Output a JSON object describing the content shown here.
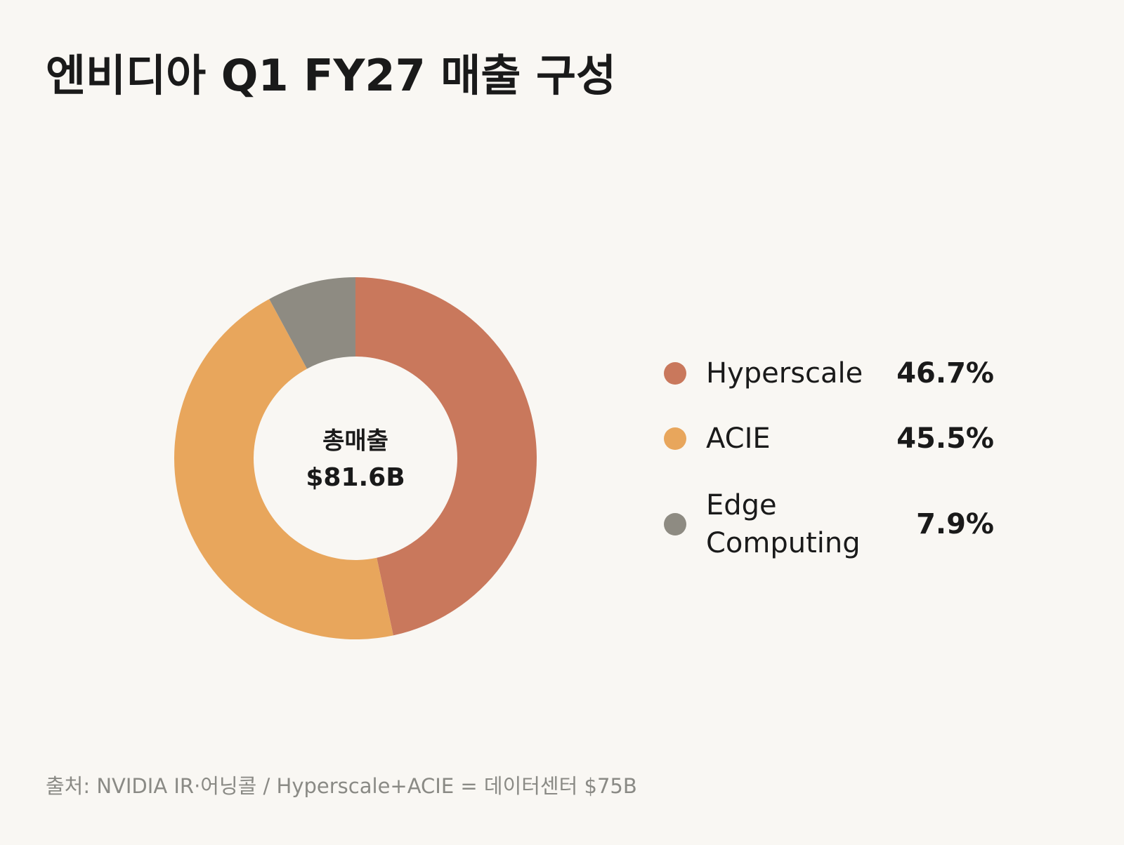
{
  "chart_data": {
    "type": "donut",
    "title": "엔비디아 Q1 FY27 매출 구성",
    "categories": [
      "Hyperscale",
      "ACIE",
      "Edge Computing"
    ],
    "values": [
      46.7,
      45.5,
      7.9
    ],
    "value_labels": [
      "46.7%",
      "45.5%",
      "7.9%"
    ],
    "colors": [
      "#c9785c",
      "#e8a65c",
      "#8e8b82"
    ],
    "center_label": "총매출",
    "center_value": "$81.6B",
    "source": "출처: NVIDIA IR·어닝콜 / Hyperscale+ACIE = 데이터센터 $75B"
  }
}
